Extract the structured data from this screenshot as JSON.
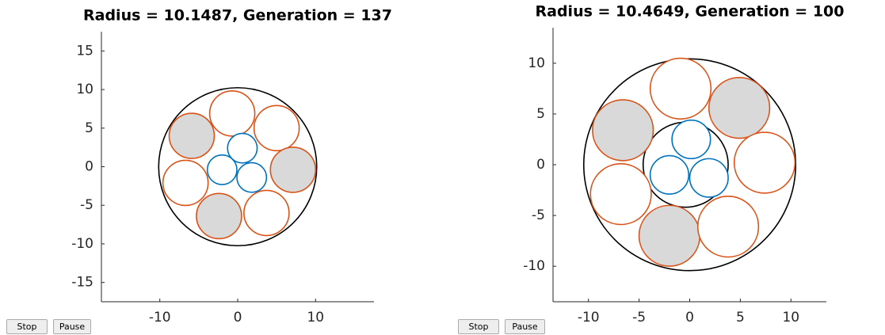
{
  "chart_data": [
    {
      "type": "circle",
      "title": "Radius = 10.1487, Generation = 137",
      "xlim": [
        -17.5,
        17.5
      ],
      "ylim": [
        -17.5,
        17.5
      ],
      "xticks": [
        -10,
        0,
        10
      ],
      "yticks": [
        -15,
        -10,
        -5,
        0,
        5,
        10,
        15
      ],
      "circles": [
        {
          "x": 0,
          "y": 0,
          "r": 10.1487,
          "color": "#000000",
          "fill": "none"
        },
        {
          "x": -0.7,
          "y": 6.9,
          "r": 2.9,
          "color": "#d95319",
          "fill": "#ffffff"
        },
        {
          "x": 5.0,
          "y": 5.0,
          "r": 2.9,
          "color": "#d95319",
          "fill": "#ffffff"
        },
        {
          "x": -5.9,
          "y": 4.0,
          "r": 2.9,
          "color": "#d95319",
          "fill": "#d9d9d9"
        },
        {
          "x": 7.1,
          "y": -0.4,
          "r": 2.9,
          "color": "#d95319",
          "fill": "#d9d9d9"
        },
        {
          "x": -6.7,
          "y": -2.1,
          "r": 2.9,
          "color": "#d95319",
          "fill": "#ffffff"
        },
        {
          "x": -2.4,
          "y": -6.4,
          "r": 2.9,
          "color": "#d95319",
          "fill": "#d9d9d9"
        },
        {
          "x": 3.7,
          "y": -6.0,
          "r": 2.9,
          "color": "#d95319",
          "fill": "#ffffff"
        },
        {
          "x": 0.6,
          "y": 2.4,
          "r": 1.9,
          "color": "#0072bd",
          "fill": "#ffffff"
        },
        {
          "x": -2.0,
          "y": -0.4,
          "r": 1.9,
          "color": "#0072bd",
          "fill": "#ffffff"
        },
        {
          "x": 1.8,
          "y": -1.4,
          "r": 1.9,
          "color": "#0072bd",
          "fill": "#ffffff"
        }
      ]
    },
    {
      "type": "circle",
      "title": "Radius = 10.4649, Generation = 100",
      "xlim": [
        -13.5,
        13.5
      ],
      "ylim": [
        -13.5,
        13.5
      ],
      "xticks": [
        -10,
        -5,
        0,
        5,
        10
      ],
      "yticks": [
        -10,
        -5,
        0,
        5,
        10
      ],
      "circles": [
        {
          "x": 0,
          "y": 0,
          "r": 10.4649,
          "color": "#000000",
          "fill": "none"
        },
        {
          "x": -0.4,
          "y": 0,
          "r": 4.2,
          "color": "#000000",
          "fill": "none"
        },
        {
          "x": -0.9,
          "y": 7.5,
          "r": 3.0,
          "color": "#d95319",
          "fill": "#ffffff"
        },
        {
          "x": 4.9,
          "y": 5.6,
          "r": 3.0,
          "color": "#d95319",
          "fill": "#d9d9d9"
        },
        {
          "x": -6.6,
          "y": 3.4,
          "r": 3.0,
          "color": "#d95319",
          "fill": "#d9d9d9"
        },
        {
          "x": 7.4,
          "y": 0.2,
          "r": 3.0,
          "color": "#d95319",
          "fill": "#ffffff"
        },
        {
          "x": -6.8,
          "y": -2.9,
          "r": 3.0,
          "color": "#d95319",
          "fill": "#ffffff"
        },
        {
          "x": -2.0,
          "y": -7.0,
          "r": 3.0,
          "color": "#d95319",
          "fill": "#d9d9d9"
        },
        {
          "x": 3.8,
          "y": -6.1,
          "r": 3.0,
          "color": "#d95319",
          "fill": "#ffffff"
        },
        {
          "x": 0.15,
          "y": 2.5,
          "r": 1.9,
          "color": "#0072bd",
          "fill": "#ffffff"
        },
        {
          "x": -2.0,
          "y": -1.0,
          "r": 1.9,
          "color": "#0072bd",
          "fill": "#ffffff"
        },
        {
          "x": 1.9,
          "y": -1.3,
          "r": 1.9,
          "color": "#0072bd",
          "fill": "#ffffff"
        }
      ]
    }
  ],
  "controls": [
    {
      "label": "Stop"
    },
    {
      "label": "Pause"
    },
    {
      "label": "Stop"
    },
    {
      "label": "Pause"
    }
  ]
}
